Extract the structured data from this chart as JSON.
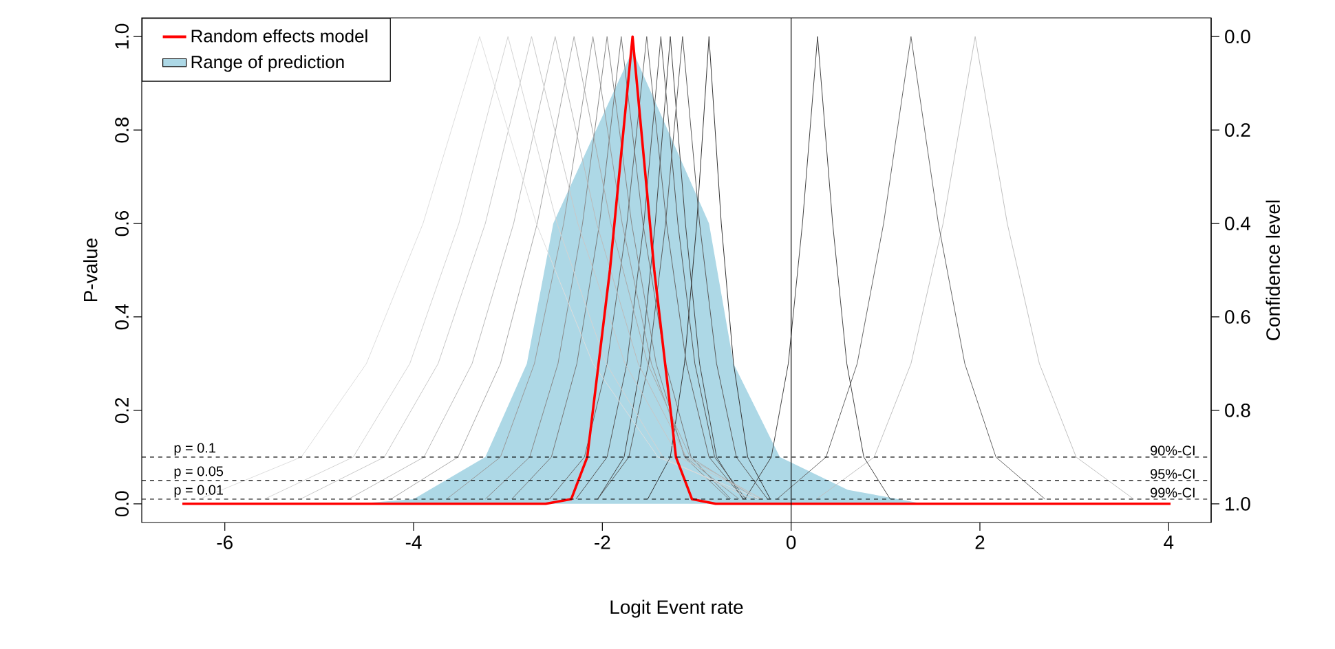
{
  "chart_data": {
    "type": "line",
    "xlabel": "Logit Event rate",
    "ylabel": "P-value",
    "y2label": "Confidence level",
    "xlim": [
      -6.88,
      4.45
    ],
    "ylim": [
      -0.04,
      1.04
    ],
    "y2lim": [
      1.04,
      -0.04
    ],
    "xticks": [
      -6,
      -4,
      -2,
      0,
      2,
      4
    ],
    "yticks": [
      {
        "value": 0,
        "label": "0.0"
      },
      {
        "value": 0.2,
        "label": "0.2"
      },
      {
        "value": 0.4,
        "label": "0.4"
      },
      {
        "value": 0.6,
        "label": "0.6"
      },
      {
        "value": 0.8,
        "label": "0.8"
      },
      {
        "value": 1,
        "label": "1.0"
      }
    ],
    "y2ticks": [
      {
        "value": 0,
        "label": "0.0"
      },
      {
        "value": 0.2,
        "label": "0.2"
      },
      {
        "value": 0.4,
        "label": "0.4"
      },
      {
        "value": 0.6,
        "label": "0.6"
      },
      {
        "value": 0.8,
        "label": "0.8"
      },
      {
        "value": 1,
        "label": "1.0"
      }
    ],
    "legend": "top left",
    "ref_lines": [
      {
        "axis": "x",
        "value": 0,
        "line_style": "solid"
      },
      {
        "axis": "y",
        "value": 0.1,
        "label": "p = 0.1",
        "line_style": "dashed"
      },
      {
        "axis": "y",
        "value": 0.05,
        "label": "p = 0.05",
        "line_style": "dashed"
      },
      {
        "axis": "y",
        "value": 0.01,
        "label": "p = 0.01",
        "line_style": "dashed"
      }
    ],
    "annotations": [
      {
        "text": "90%-CI",
        "y": 0.1
      },
      {
        "text": "95%-CI",
        "y": 0.05
      },
      {
        "text": "99%-CI",
        "y": 0.01
      }
    ],
    "series": [
      {
        "name": "Random effects model",
        "color": "#ff0000",
        "x": [
          -6.45,
          -2.6,
          -2.33,
          -2.16,
          -1.92,
          -1.68,
          -1.45,
          -1.22,
          -1.05,
          -0.8,
          4.02
        ],
        "values": [
          0,
          0,
          0.01,
          0.1,
          0.5,
          1,
          0.5,
          0.1,
          0.01,
          0,
          0
        ]
      },
      {
        "name": "Range of prediction",
        "type": "area",
        "color": "#add8e6",
        "x": [
          -4.6,
          -4.0,
          -3.24,
          -2.8,
          -2.52,
          -1.68,
          -0.87,
          -0.61,
          -0.12,
          0.6,
          1.4
        ],
        "values": [
          0,
          0.01,
          0.1,
          0.3,
          0.6,
          0.97,
          0.6,
          0.3,
          0.1,
          0.03,
          0
        ]
      },
      {
        "color": "#dddddd",
        "x": [
          -6.27,
          -5.19,
          -4.5,
          -3.9,
          -3.3,
          -2.7,
          -2.1,
          -1.41,
          -0.33
        ],
        "values": [
          0.01,
          0.1,
          0.3,
          0.6,
          1,
          0.6,
          0.3,
          0.1,
          0.01
        ]
      },
      {
        "color": "#d3d3d3",
        "x": [
          -5.58,
          -4.64,
          -4.04,
          -3.52,
          -3.0,
          -2.48,
          -1.96,
          -1.36,
          -0.42
        ],
        "values": [
          0.01,
          0.1,
          0.3,
          0.6,
          1,
          0.6,
          0.3,
          0.1,
          0.01
        ]
      },
      {
        "color": "#c8c8c8",
        "x": [
          -5.2,
          -4.31,
          -3.74,
          -3.24,
          -2.75,
          -2.26,
          -1.76,
          -1.19,
          -0.3
        ],
        "values": [
          0.01,
          0.1,
          0.3,
          0.6,
          1,
          0.6,
          0.3,
          0.1,
          0.01
        ]
      },
      {
        "color": "#bbbbbb",
        "x": [
          -4.69,
          -3.89,
          -3.38,
          -2.94,
          -2.5,
          -2.06,
          -1.62,
          -1.11,
          -0.31
        ],
        "values": [
          0.01,
          0.1,
          0.3,
          0.6,
          1,
          0.6,
          0.3,
          0.1,
          0.01
        ]
      },
      {
        "color": "#aaaaaa",
        "x": [
          -4.24,
          -3.53,
          -3.08,
          -2.69,
          -2.3,
          -1.91,
          -1.52,
          -1.07,
          -0.36
        ],
        "values": [
          0.01,
          0.1,
          0.3,
          0.6,
          1,
          0.6,
          0.3,
          0.1,
          0.01
        ]
      },
      {
        "color": "#999999",
        "x": [
          -3.65,
          -3.08,
          -2.72,
          -2.41,
          -2.1,
          -1.79,
          -1.48,
          -1.12,
          -0.55
        ],
        "values": [
          0.01,
          0.1,
          0.3,
          0.6,
          1,
          0.6,
          0.3,
          0.1,
          0.01
        ]
      },
      {
        "color": "#888888",
        "x": [
          -3.24,
          -2.77,
          -2.47,
          -2.21,
          -1.95,
          -1.69,
          -1.43,
          -1.13,
          -0.66
        ],
        "values": [
          0.01,
          0.1,
          0.3,
          0.6,
          1,
          0.6,
          0.3,
          0.1,
          0.01
        ]
      },
      {
        "color": "#777777",
        "x": [
          -2.96,
          -2.54,
          -2.27,
          -2.03,
          -1.8,
          -1.57,
          -1.33,
          -1.06,
          -0.64
        ],
        "values": [
          0.01,
          0.1,
          0.3,
          0.6,
          1,
          0.6,
          0.3,
          0.1,
          0.01
        ]
      },
      {
        "color": "#666666",
        "x": [
          -2.56,
          -2.19,
          -1.95,
          -1.74,
          -1.53,
          -1.32,
          -1.11,
          -0.87,
          -0.5
        ],
        "values": [
          0.01,
          0.1,
          0.3,
          0.6,
          1,
          0.6,
          0.3,
          0.1,
          0.01
        ]
      },
      {
        "color": "#555555",
        "x": [
          -2.28,
          -1.95,
          -1.74,
          -1.56,
          -1.38,
          -1.2,
          -1.02,
          -0.81,
          -0.48
        ],
        "values": [
          0.01,
          0.1,
          0.3,
          0.6,
          1,
          0.6,
          0.3,
          0.1,
          0.01
        ]
      },
      {
        "color": "#444444",
        "x": [
          -2.05,
          -1.77,
          -1.59,
          -1.44,
          -1.28,
          -1.12,
          -0.97,
          -0.79,
          -0.51
        ],
        "values": [
          0.01,
          0.1,
          0.3,
          0.6,
          1,
          0.6,
          0.3,
          0.1,
          0.01
        ]
      },
      {
        "color": "#5a5a5a",
        "x": [
          -2.05,
          -1.72,
          -1.51,
          -1.33,
          -1.15,
          -0.97,
          -0.79,
          -0.58,
          -0.25
        ],
        "values": [
          0.01,
          0.1,
          0.3,
          0.6,
          1,
          0.6,
          0.3,
          0.1,
          0.01
        ]
      },
      {
        "color": "#333333",
        "x": [
          -1.52,
          -1.28,
          -1.13,
          -1.0,
          -0.87,
          -0.74,
          -0.61,
          -0.46,
          -0.22
        ],
        "values": [
          0.01,
          0.1,
          0.3,
          0.6,
          1,
          0.6,
          0.3,
          0.1,
          0.01
        ]
      },
      {
        "color": "#444444",
        "x": [
          -0.49,
          -0.21,
          -0.03,
          0.12,
          0.28,
          0.44,
          0.59,
          0.77,
          1.05
        ],
        "values": [
          0.01,
          0.1,
          0.3,
          0.6,
          1,
          0.6,
          0.3,
          0.1,
          0.01
        ]
      },
      {
        "color": "#666666",
        "x": [
          -0.15,
          0.37,
          0.7,
          0.98,
          1.27,
          1.56,
          1.84,
          2.17,
          2.69
        ],
        "values": [
          0.01,
          0.1,
          0.3,
          0.6,
          1,
          0.6,
          0.3,
          0.1,
          0.01
        ]
      },
      {
        "color": "#c0c0c0",
        "x": [
          0.27,
          0.88,
          1.27,
          1.61,
          1.95,
          2.29,
          2.63,
          3.02,
          3.63
        ],
        "values": [
          0.01,
          0.1,
          0.3,
          0.6,
          1,
          0.6,
          0.3,
          0.1,
          0.01
        ]
      }
    ]
  }
}
